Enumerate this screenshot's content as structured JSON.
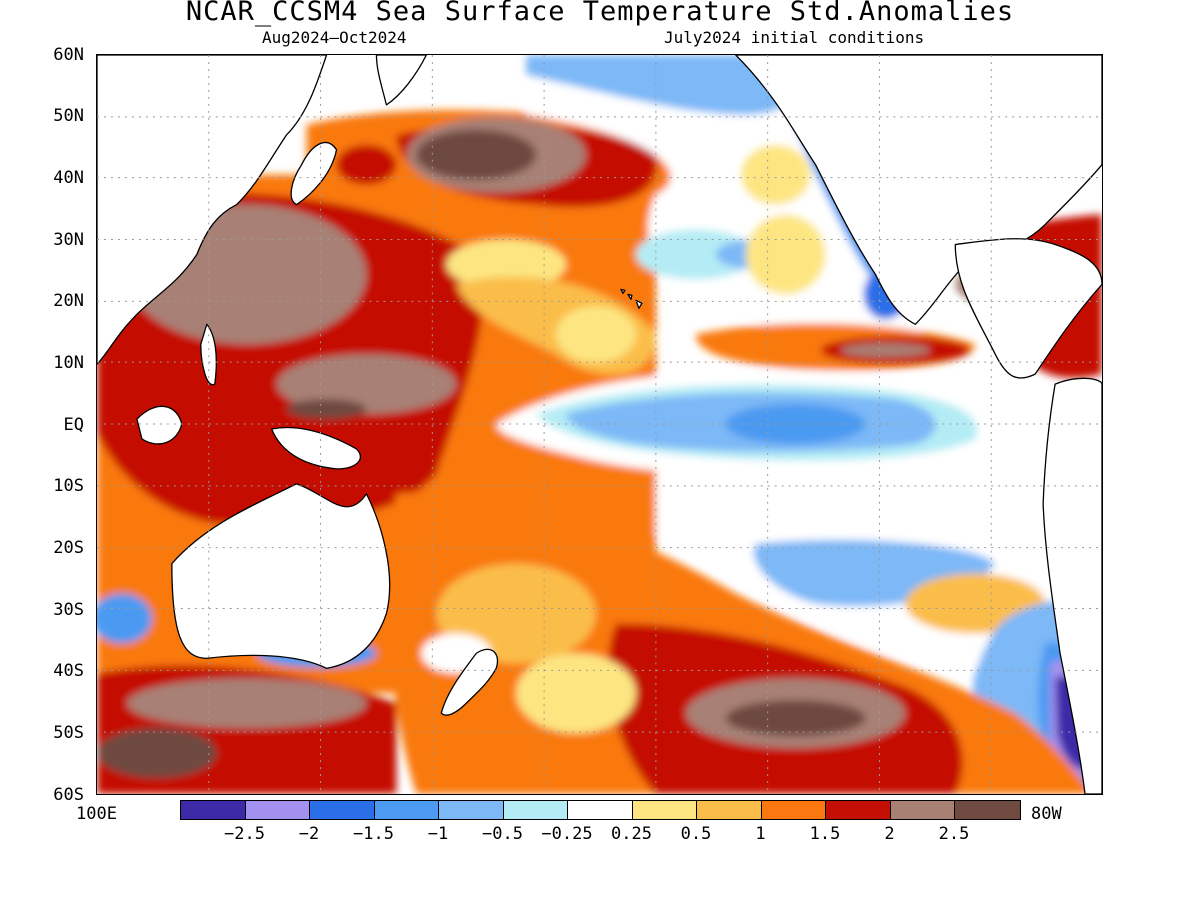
{
  "title": "NCAR_CCSM4 Sea Surface Temperature Std.Anomalies",
  "subtitle_left": "Aug2024–Oct2024",
  "subtitle_right": "July2024 initial conditions",
  "axes": {
    "lat_labels": [
      "60N",
      "50N",
      "40N",
      "30N",
      "20N",
      "10N",
      "EQ",
      "10S",
      "20S",
      "30S",
      "40S",
      "50S",
      "60S"
    ],
    "lon_left": "100E",
    "lon_right": "80W",
    "lat_range": [
      -60,
      60
    ],
    "lon_range": [
      100,
      280
    ],
    "grid": "dotted"
  },
  "colorbar": {
    "colors": [
      "#3c2aa8",
      "#a391f0",
      "#2a6ee8",
      "#4c9af2",
      "#7db8f7",
      "#b4ecf5",
      "#ffffff",
      "#fde682",
      "#fbbd4a",
      "#f97910",
      "#c40f05",
      "#a88074",
      "#6e4a40"
    ],
    "labels": [
      "−2.5",
      "−2",
      "−1.5",
      "−1",
      "−0.5",
      "−0.25",
      "0.25",
      "0.5",
      "1",
      "1.5",
      "2",
      "2.5"
    ]
  },
  "regions": [
    {
      "name": "equatorial-cold-tongue",
      "value": -1.0
    },
    {
      "name": "warm-pool-west-pacific",
      "value": 2.0
    },
    {
      "name": "north-pacific-warm-blob",
      "value": 2.5
    },
    {
      "name": "south-pacific-warm-band",
      "value": 2.5
    },
    {
      "name": "chile-coast-cold",
      "value": -2.5
    },
    {
      "name": "california-coast-cold",
      "value": -1.5
    }
  ]
}
